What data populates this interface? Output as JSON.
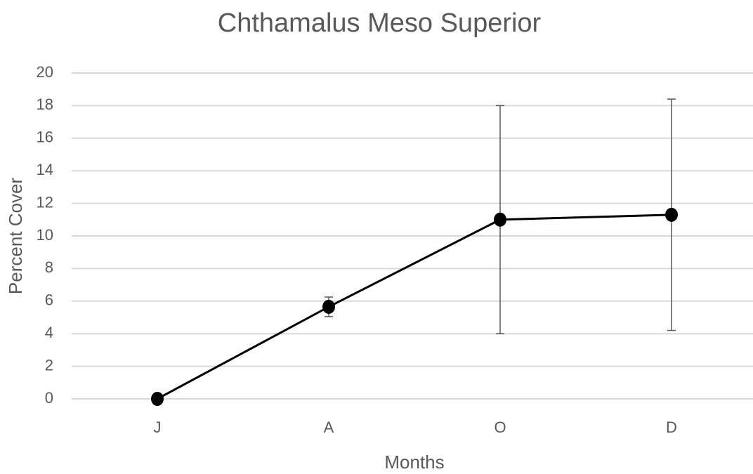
{
  "chart_data": {
    "type": "line",
    "title": "Chthamalus Meso Superior",
    "x_label": "Months",
    "y_label": "Percent Cover",
    "categories": [
      "J",
      "A",
      "O",
      "D"
    ],
    "series": [
      {
        "name": "Chthamalus Meso Superior",
        "color": "#000000",
        "values": [
          0,
          5.65,
          11,
          11.3
        ],
        "errors": [
          0,
          0.6,
          7,
          7.1
        ]
      }
    ],
    "ylim": [
      0,
      20
    ],
    "yticks": [
      0,
      2,
      4,
      6,
      8,
      10,
      12,
      14,
      16,
      18,
      20
    ],
    "grid": true
  }
}
